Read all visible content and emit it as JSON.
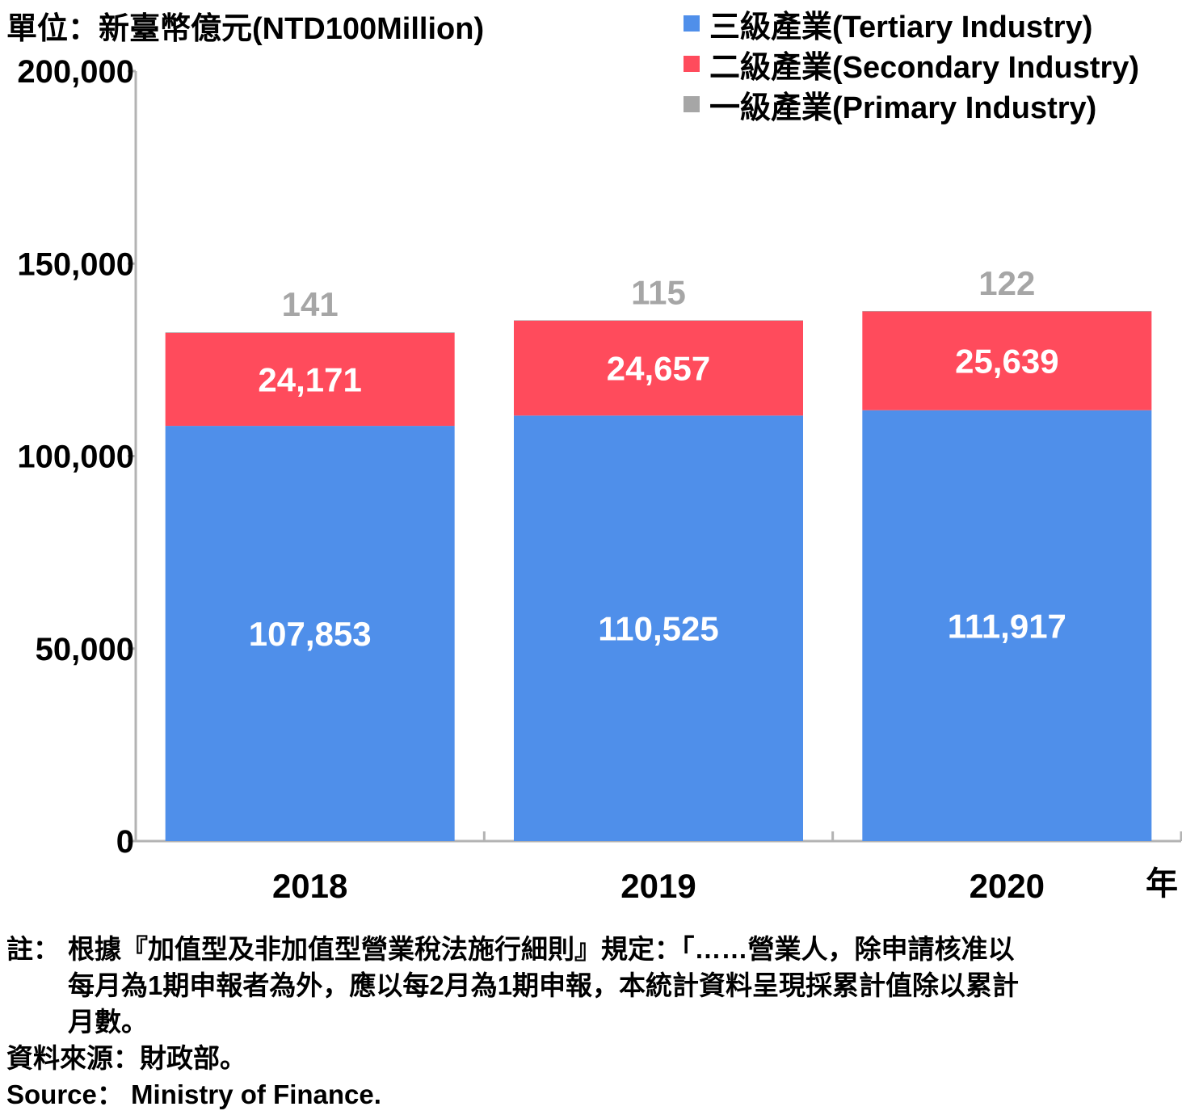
{
  "chart_data": {
    "type": "bar",
    "stacked": true,
    "unit_label": "單位：新臺幣億元(NTD100Million)",
    "categories": [
      "2018",
      "2019",
      "2020"
    ],
    "x_unit": "年",
    "ylim": [
      0,
      200000
    ],
    "yticks": [
      0,
      50000,
      100000,
      150000,
      200000
    ],
    "ytick_labels": [
      "0",
      "50,000",
      "100,000",
      "150,000",
      "200,000"
    ],
    "grid": false,
    "legend_position": "top-right",
    "series": [
      {
        "name": "一級產業(Primary Industry)",
        "color": "#A6A6A6",
        "values": [
          141,
          115,
          122
        ],
        "labels": [
          "141",
          "115",
          "122"
        ]
      },
      {
        "name": "二級產業(Secondary Industry)",
        "color": "#FF4B5C",
        "values": [
          24171,
          24657,
          25639
        ],
        "labels": [
          "24,171",
          "24,657",
          "25,639"
        ]
      },
      {
        "name": "三級產業(Tertiary Industry)",
        "color": "#4F8FEA",
        "values": [
          107853,
          110525,
          111917
        ],
        "labels": [
          "107,853",
          "110,525",
          "111,917"
        ]
      }
    ],
    "legend_order": [
      2,
      1,
      0
    ]
  },
  "notes": {
    "note_prefix": "註：",
    "note_lines": [
      "根據『加值型及非加值型營業稅法施行細則』規定：「……營業人，除申請核准以",
      "每月為1期申報者為外，應以每2月為1期申報，本統計資料呈現採累計值除以累計",
      "月數。"
    ],
    "source_zh": "資料來源：財政部。",
    "source_en": "Source： Ministry of Finance."
  }
}
